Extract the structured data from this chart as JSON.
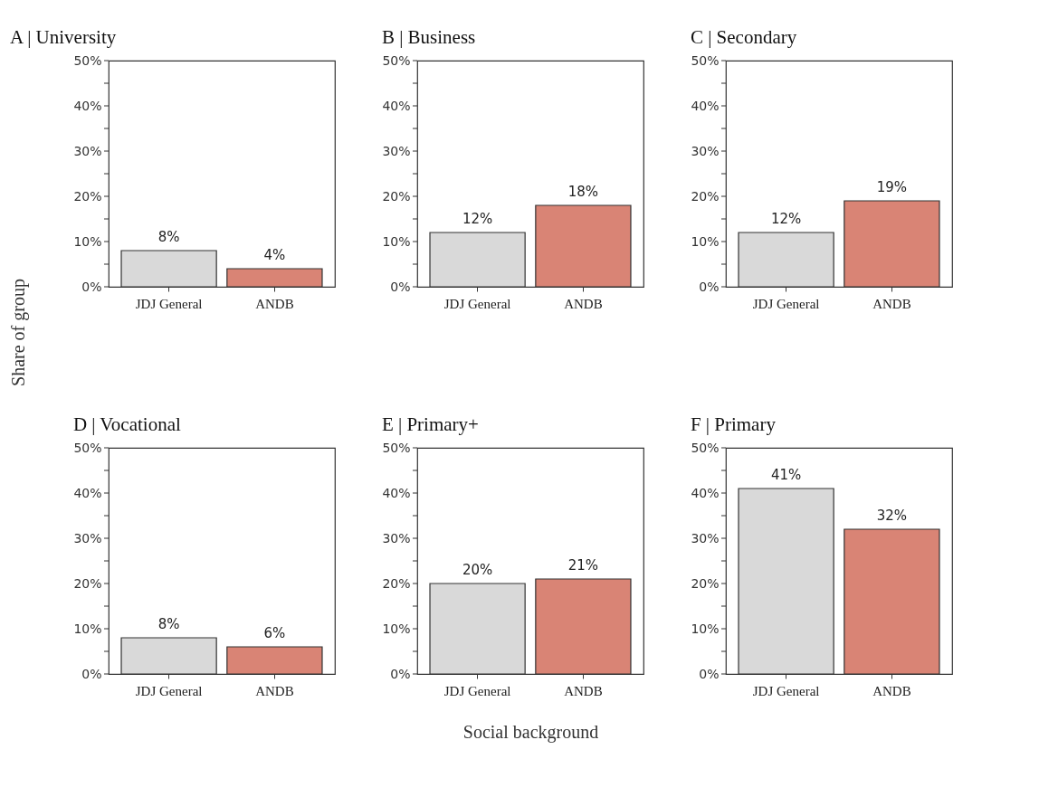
{
  "chart_data": [
    {
      "type": "bar",
      "title": "A | University",
      "ylabel": "Share of group",
      "categories": [
        "JDJ General",
        "ANDB"
      ],
      "values": [
        8,
        4
      ],
      "colors": [
        "#d9d9d9",
        "#d98475"
      ],
      "value_labels": [
        "8%",
        "4%"
      ],
      "ylim": [
        0,
        50
      ],
      "yticks": [
        {
          "value": 0,
          "label": "0%"
        },
        {
          "value": 5,
          "label": null
        },
        {
          "value": 10,
          "label": "10%"
        },
        {
          "value": 15,
          "label": null
        },
        {
          "value": 20,
          "label": "20%"
        },
        {
          "value": 25,
          "label": null
        },
        {
          "value": 30,
          "label": "30%"
        },
        {
          "value": 35,
          "label": null
        },
        {
          "value": 40,
          "label": "40%"
        },
        {
          "value": 45,
          "label": null
        },
        {
          "value": 50,
          "label": "50%"
        }
      ],
      "grid": false
    },
    {
      "type": "bar",
      "title": "B | Business",
      "categories": [
        "JDJ General",
        "ANDB"
      ],
      "values": [
        12,
        18
      ],
      "colors": [
        "#d9d9d9",
        "#d98475"
      ],
      "value_labels": [
        "12%",
        "18%"
      ],
      "ylim": [
        0,
        50
      ],
      "yticks": [
        {
          "value": 0,
          "label": "0%"
        },
        {
          "value": 5,
          "label": null
        },
        {
          "value": 10,
          "label": "10%"
        },
        {
          "value": 15,
          "label": null
        },
        {
          "value": 20,
          "label": "20%"
        },
        {
          "value": 25,
          "label": null
        },
        {
          "value": 30,
          "label": "30%"
        },
        {
          "value": 35,
          "label": null
        },
        {
          "value": 40,
          "label": "40%"
        },
        {
          "value": 45,
          "label": null
        },
        {
          "value": 50,
          "label": "50%"
        }
      ],
      "grid": false
    },
    {
      "type": "bar",
      "title": "C | Secondary",
      "categories": [
        "JDJ General",
        "ANDB"
      ],
      "values": [
        12,
        19
      ],
      "colors": [
        "#d9d9d9",
        "#d98475"
      ],
      "value_labels": [
        "12%",
        "19%"
      ],
      "ylim": [
        0,
        50
      ],
      "yticks": [
        {
          "value": 0,
          "label": "0%"
        },
        {
          "value": 5,
          "label": null
        },
        {
          "value": 10,
          "label": "10%"
        },
        {
          "value": 15,
          "label": null
        },
        {
          "value": 20,
          "label": "20%"
        },
        {
          "value": 25,
          "label": null
        },
        {
          "value": 30,
          "label": "30%"
        },
        {
          "value": 35,
          "label": null
        },
        {
          "value": 40,
          "label": "40%"
        },
        {
          "value": 45,
          "label": null
        },
        {
          "value": 50,
          "label": "50%"
        }
      ],
      "grid": false
    },
    {
      "type": "bar",
      "title": "D | Vocational",
      "categories": [
        "JDJ General",
        "ANDB"
      ],
      "values": [
        8,
        6
      ],
      "colors": [
        "#d9d9d9",
        "#d98475"
      ],
      "value_labels": [
        "8%",
        "6%"
      ],
      "ylim": [
        0,
        50
      ],
      "yticks": [
        {
          "value": 0,
          "label": "0%"
        },
        {
          "value": 5,
          "label": null
        },
        {
          "value": 10,
          "label": "10%"
        },
        {
          "value": 15,
          "label": null
        },
        {
          "value": 20,
          "label": "20%"
        },
        {
          "value": 25,
          "label": null
        },
        {
          "value": 30,
          "label": "30%"
        },
        {
          "value": 35,
          "label": null
        },
        {
          "value": 40,
          "label": "40%"
        },
        {
          "value": 45,
          "label": null
        },
        {
          "value": 50,
          "label": "50%"
        }
      ],
      "grid": false
    },
    {
      "type": "bar",
      "title": "E | Primary+",
      "xlabel": "Social background",
      "categories": [
        "JDJ General",
        "ANDB"
      ],
      "values": [
        20,
        21
      ],
      "colors": [
        "#d9d9d9",
        "#d98475"
      ],
      "value_labels": [
        "20%",
        "21%"
      ],
      "ylim": [
        0,
        50
      ],
      "yticks": [
        {
          "value": 0,
          "label": "0%"
        },
        {
          "value": 5,
          "label": null
        },
        {
          "value": 10,
          "label": "10%"
        },
        {
          "value": 15,
          "label": null
        },
        {
          "value": 20,
          "label": "20%"
        },
        {
          "value": 25,
          "label": null
        },
        {
          "value": 30,
          "label": "30%"
        },
        {
          "value": 35,
          "label": null
        },
        {
          "value": 40,
          "label": "40%"
        },
        {
          "value": 45,
          "label": null
        },
        {
          "value": 50,
          "label": "50%"
        }
      ],
      "grid": false
    },
    {
      "type": "bar",
      "title": "F | Primary",
      "categories": [
        "JDJ General",
        "ANDB"
      ],
      "values": [
        41,
        32
      ],
      "colors": [
        "#d9d9d9",
        "#d98475"
      ],
      "value_labels": [
        "41%",
        "32%"
      ],
      "ylim": [
        0,
        50
      ],
      "yticks": [
        {
          "value": 0,
          "label": "0%"
        },
        {
          "value": 5,
          "label": null
        },
        {
          "value": 10,
          "label": "10%"
        },
        {
          "value": 15,
          "label": null
        },
        {
          "value": 20,
          "label": "20%"
        },
        {
          "value": 25,
          "label": null
        },
        {
          "value": 30,
          "label": "30%"
        },
        {
          "value": 35,
          "label": null
        },
        {
          "value": 40,
          "label": "40%"
        },
        {
          "value": 45,
          "label": null
        },
        {
          "value": 50,
          "label": "50%"
        }
      ],
      "grid": false
    }
  ]
}
